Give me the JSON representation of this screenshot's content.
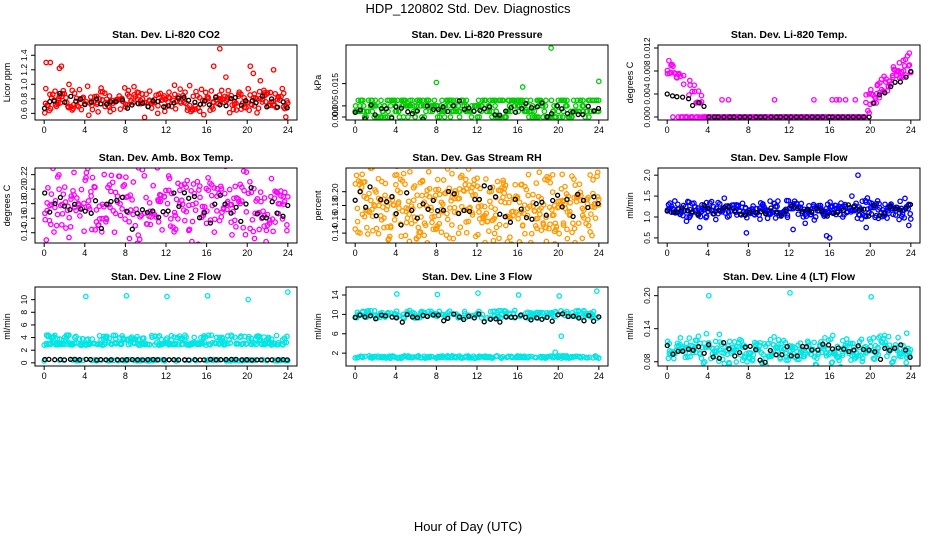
{
  "title": "HDP_120802  Std. Dev. Diagnostics",
  "xlabel": "Hour of Day (UTC)",
  "chart_data": [
    {
      "type": "scatter",
      "title": "Stan. Dev. Li-820 CO2",
      "ylabel": "Licor ppm",
      "color": "#ff0000",
      "xlim": [
        0,
        24
      ],
      "ylim": [
        0.55,
        1.5
      ],
      "xticks": [
        "0",
        "4",
        "8",
        "12",
        "16",
        "20",
        "24"
      ],
      "xtickvals": [
        0,
        4,
        8,
        12,
        16,
        20,
        24
      ],
      "yticks": [
        "0.6",
        "0.8",
        "1.0",
        "1.2",
        "1.4"
      ],
      "ytickvals": [
        0.6,
        0.8,
        1.0,
        1.2,
        1.4
      ],
      "series": [
        {
          "name": "samples",
          "pattern": {
            "mode": "band",
            "lo": 0.62,
            "hi": 0.92,
            "n": 260,
            "seed": 11
          },
          "outliers": [
            [
              0.2,
              1.3
            ],
            [
              0.6,
              1.3
            ],
            [
              1.5,
              1.22
            ],
            [
              1.7,
              1.25
            ],
            [
              16.7,
              1.25
            ],
            [
              17.3,
              1.49
            ],
            [
              17.9,
              1.1
            ],
            [
              20.3,
              1.25
            ],
            [
              20.6,
              1.15
            ],
            [
              21.3,
              1.05
            ],
            [
              22.6,
              1.2
            ],
            [
              23.8,
              0.55
            ]
          ]
        },
        {
          "name": "mean",
          "color": "#000000",
          "pattern": {
            "mode": "band",
            "lo": 0.68,
            "hi": 0.84,
            "n": 48,
            "seed": 12
          }
        }
      ]
    },
    {
      "type": "scatter",
      "title": "Stan. Dev. Li-820 Pressure",
      "ylabel": "kPa",
      "color": "#00cc00",
      "xlim": [
        0,
        24
      ],
      "ylim": [
        0,
        0.031
      ],
      "xticks": [
        "0",
        "4",
        "8",
        "12",
        "16",
        "20",
        "24"
      ],
      "xtickvals": [
        0,
        4,
        8,
        12,
        16,
        20,
        24
      ],
      "yticks": [
        "0.000",
        "0.005",
        "0.015"
      ],
      "ytickvals": [
        0,
        0.005,
        0.015
      ],
      "series": [
        {
          "name": "samples",
          "pattern": {
            "mode": "levels",
            "levels": [
              0,
              0.0025,
              0.005,
              0.0075
            ],
            "n": 300,
            "seed": 21
          },
          "outliers": [
            [
              8,
              0.0155
            ],
            [
              16.5,
              0.0135
            ],
            [
              19.3,
              0.031
            ],
            [
              24,
              0.016
            ]
          ]
        },
        {
          "name": "mean",
          "color": "#000000",
          "pattern": {
            "mode": "band",
            "lo": 0.0005,
            "hi": 0.006,
            "n": 48,
            "seed": 22
          }
        }
      ]
    },
    {
      "type": "scatter",
      "title": "Stan. Dev. Li-820 Temp.",
      "ylabel": "degrees C",
      "color": "#ff00ff",
      "xlim": [
        0,
        24
      ],
      "ylim": [
        0,
        0.012
      ],
      "xticks": [
        "0",
        "4",
        "8",
        "12",
        "16",
        "20",
        "24"
      ],
      "xtickvals": [
        0,
        4,
        8,
        12,
        16,
        20,
        24
      ],
      "yticks": [
        "0.000",
        "0.004",
        "0.008",
        "0.012"
      ],
      "ytickvals": [
        0,
        0.004,
        0.008,
        0.012
      ],
      "series": [
        {
          "name": "samples",
          "pattern": {
            "mode": "temp",
            "n": 300,
            "seed": 31
          }
        },
        {
          "name": "mean",
          "color": "#000000",
          "pattern": {
            "mode": "tempmean",
            "n": 48,
            "seed": 32
          }
        }
      ]
    },
    {
      "type": "scatter",
      "title": "Stan. Dev. Amb. Box Temp.",
      "ylabel": "degrees C",
      "color": "#ff00ff",
      "xlim": [
        0,
        24
      ],
      "ylim": [
        0.13,
        0.225
      ],
      "xticks": [
        "0",
        "4",
        "8",
        "12",
        "16",
        "20",
        "24"
      ],
      "xtickvals": [
        0,
        4,
        8,
        12,
        16,
        20,
        24
      ],
      "yticks": [
        "0.14",
        "0.16",
        "0.18",
        "0.20",
        "0.22"
      ],
      "ytickvals": [
        0.14,
        0.16,
        0.18,
        0.2,
        0.22
      ],
      "series": [
        {
          "name": "samples",
          "pattern": {
            "mode": "band",
            "lo": 0.135,
            "hi": 0.215,
            "n": 300,
            "seed": 41
          }
        },
        {
          "name": "mean",
          "color": "#000000",
          "pattern": {
            "mode": "band",
            "lo": 0.15,
            "hi": 0.195,
            "n": 48,
            "seed": 42
          }
        }
      ]
    },
    {
      "type": "scatter",
      "title": "Stan. Dev. Gas Stream RH",
      "ylabel": "percent",
      "color": "#ff9900",
      "xlim": [
        0,
        24
      ],
      "ylim": [
        0.13,
        0.23
      ],
      "xticks": [
        "0",
        "4",
        "8",
        "12",
        "16",
        "20",
        "24"
      ],
      "xtickvals": [
        0,
        4,
        8,
        12,
        16,
        20,
        24
      ],
      "yticks": [
        "0.14",
        "0.16",
        "0.18",
        "0.20"
      ],
      "ytickvals": [
        0.14,
        0.16,
        0.18,
        0.2
      ],
      "series": [
        {
          "name": "samples",
          "pattern": {
            "mode": "band",
            "lo": 0.135,
            "hi": 0.222,
            "n": 420,
            "seed": 51
          }
        },
        {
          "name": "mean",
          "color": "#000000",
          "pattern": {
            "mode": "band",
            "lo": 0.155,
            "hi": 0.2,
            "n": 48,
            "seed": 52
          }
        }
      ]
    },
    {
      "type": "scatter",
      "title": "Stan. Dev. Sample Flow",
      "ylabel": "ml/min",
      "color": "#0000ff",
      "xlim": [
        0,
        24
      ],
      "ylim": [
        0.45,
        2.1
      ],
      "xticks": [
        "0",
        "4",
        "8",
        "12",
        "16",
        "20",
        "24"
      ],
      "xtickvals": [
        0,
        4,
        8,
        12,
        16,
        20,
        24
      ],
      "yticks": [
        "0.5",
        "1.0",
        "1.5",
        "2.0"
      ],
      "ytickvals": [
        0.5,
        1.0,
        1.5,
        2.0
      ],
      "series": [
        {
          "name": "samples",
          "pattern": {
            "mode": "band",
            "lo": 1.0,
            "hi": 1.35,
            "n": 320,
            "seed": 61
          },
          "outliers": [
            [
              1.9,
              0.9
            ],
            [
              3.2,
              0.75
            ],
            [
              7.8,
              0.62
            ],
            [
              12.4,
              0.7
            ],
            [
              13.6,
              0.85
            ],
            [
              15.7,
              0.55
            ],
            [
              16,
              0.5
            ],
            [
              18.2,
              1.5
            ],
            [
              18.8,
              2.0
            ],
            [
              19.6,
              0.75
            ],
            [
              23.8,
              0.8
            ]
          ]
        },
        {
          "name": "mean",
          "color": "#000000",
          "pattern": {
            "mode": "band",
            "lo": 1.05,
            "hi": 1.25,
            "n": 48,
            "seed": 62
          }
        }
      ]
    },
    {
      "type": "scatter",
      "title": "Stan. Dev. Line 2 Flow",
      "ylabel": "ml/min",
      "color": "#00e5e5",
      "xlim": [
        0,
        24
      ],
      "ylim": [
        0,
        11.5
      ],
      "xticks": [
        "0",
        "4",
        "8",
        "12",
        "16",
        "20",
        "24"
      ],
      "xtickvals": [
        0,
        4,
        8,
        12,
        16,
        20,
        24
      ],
      "yticks": [
        "0",
        "2",
        "4",
        "6",
        "8",
        "10"
      ],
      "ytickvals": [
        0,
        2,
        4,
        6,
        8,
        10
      ],
      "series": [
        {
          "name": "samples",
          "pattern": {
            "mode": "flow2",
            "n": 360,
            "seed": 71
          },
          "outliers": [
            [
              4.1,
              10.5
            ],
            [
              8.1,
              10.6
            ],
            [
              12.1,
              10.5
            ],
            [
              16.1,
              10.6
            ],
            [
              20.1,
              10.0
            ],
            [
              24,
              11.2
            ]
          ]
        },
        {
          "name": "mean",
          "color": "#000000",
          "pattern": {
            "mode": "line",
            "y": 0.5,
            "n": 48,
            "seed": 72
          }
        }
      ]
    },
    {
      "type": "scatter",
      "title": "Stan. Dev. Line 3 Flow",
      "ylabel": "ml/min",
      "color": "#00e5e5",
      "xlim": [
        0,
        24
      ],
      "ylim": [
        0,
        15
      ],
      "xticks": [
        "0",
        "4",
        "8",
        "12",
        "16",
        "20",
        "24"
      ],
      "xtickvals": [
        0,
        4,
        8,
        12,
        16,
        20,
        24
      ],
      "yticks": [
        "2",
        "6",
        "10",
        "14"
      ],
      "ytickvals": [
        2,
        6,
        10,
        14
      ],
      "series": [
        {
          "name": "samples",
          "pattern": {
            "mode": "flow3",
            "n": 380,
            "seed": 81
          },
          "outliers": [
            [
              4.1,
              14.2
            ],
            [
              8.1,
              14.1
            ],
            [
              12.1,
              14.4
            ],
            [
              16.1,
              14.0
            ],
            [
              20.1,
              13.8
            ],
            [
              23.8,
              14.8
            ],
            [
              19.7,
              2.2
            ],
            [
              20.3,
              5.5
            ]
          ]
        },
        {
          "name": "mean",
          "color": "#000000",
          "pattern": {
            "mode": "band",
            "lo": 8.6,
            "hi": 10.0,
            "n": 48,
            "seed": 82
          }
        }
      ]
    },
    {
      "type": "scatter",
      "title": "Stan. Dev. Line 4 (LT) Flow",
      "ylabel": "ml/min",
      "color": "#00e5e5",
      "xlim": [
        0,
        24
      ],
      "ylim": [
        0.078,
        0.21
      ],
      "xticks": [
        "0",
        "4",
        "8",
        "12",
        "16",
        "20",
        "24"
      ],
      "xtickvals": [
        0,
        4,
        8,
        12,
        16,
        20,
        24
      ],
      "yticks": [
        "0.08",
        "0.14",
        "0.20"
      ],
      "ytickvals": [
        0.08,
        0.14,
        0.2
      ],
      "series": [
        {
          "name": "samples",
          "pattern": {
            "mode": "band",
            "lo": 0.082,
            "hi": 0.12,
            "n": 320,
            "seed": 91
          },
          "outliers": [
            [
              4.1,
              0.2
            ],
            [
              12.1,
              0.205
            ],
            [
              20.1,
              0.198
            ],
            [
              16.2,
              0.078
            ]
          ]
        },
        {
          "name": "mean",
          "color": "#000000",
          "pattern": {
            "mode": "band",
            "lo": 0.088,
            "hi": 0.112,
            "n": 48,
            "seed": 92
          }
        }
      ]
    }
  ]
}
